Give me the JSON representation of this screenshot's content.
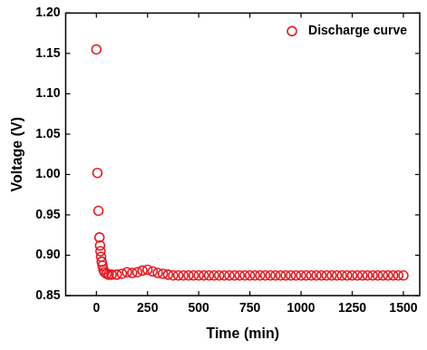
{
  "chart_data": {
    "type": "scatter",
    "x_label": "Time (min)",
    "y_label": "Voltage (V)",
    "series": [
      {
        "name": "Discharge curve",
        "color": "#e8141c",
        "marker": "open_circle",
        "x": [
          0,
          5,
          10,
          15,
          18,
          20,
          23,
          26,
          30,
          35,
          40,
          50,
          60,
          75,
          100,
          125,
          150,
          175,
          200,
          225,
          250,
          275,
          300,
          325,
          350,
          375,
          400,
          425,
          450,
          475,
          500,
          525,
          550,
          575,
          600,
          625,
          650,
          675,
          700,
          725,
          750,
          775,
          800,
          825,
          850,
          875,
          900,
          925,
          950,
          975,
          1000,
          1025,
          1050,
          1075,
          1100,
          1125,
          1150,
          1175,
          1200,
          1225,
          1250,
          1275,
          1300,
          1325,
          1350,
          1375,
          1400,
          1425,
          1450,
          1475,
          1500
        ],
        "values": [
          1.155,
          1.002,
          0.955,
          0.922,
          0.912,
          0.905,
          0.898,
          0.892,
          0.887,
          0.882,
          0.879,
          0.877,
          0.876,
          0.876,
          0.876,
          0.877,
          0.879,
          0.878,
          0.879,
          0.881,
          0.882,
          0.88,
          0.878,
          0.877,
          0.876,
          0.875,
          0.875,
          0.875,
          0.875,
          0.875,
          0.875,
          0.875,
          0.875,
          0.875,
          0.875,
          0.875,
          0.875,
          0.875,
          0.875,
          0.875,
          0.875,
          0.875,
          0.875,
          0.875,
          0.875,
          0.875,
          0.875,
          0.875,
          0.875,
          0.875,
          0.875,
          0.875,
          0.875,
          0.875,
          0.875,
          0.875,
          0.875,
          0.875,
          0.875,
          0.875,
          0.875,
          0.875,
          0.875,
          0.875,
          0.875,
          0.875,
          0.875,
          0.875,
          0.875,
          0.875,
          0.875
        ]
      }
    ],
    "xlim": [
      -150,
      1580
    ],
    "xticks": [
      0,
      250,
      500,
      750,
      1000,
      1250,
      1500
    ],
    "ylim": [
      0.85,
      1.2
    ],
    "yticks": [
      0.85,
      {
        "value": 0.9,
        "label": "0.90"
      },
      0.95,
      {
        "value": 1.0,
        "label": "1.00"
      },
      1.05,
      {
        "value": 1.1,
        "label": "1.10"
      },
      1.15,
      {
        "value": 1.2,
        "label": "1.20"
      }
    ],
    "grid": false,
    "legend": "upper right"
  }
}
